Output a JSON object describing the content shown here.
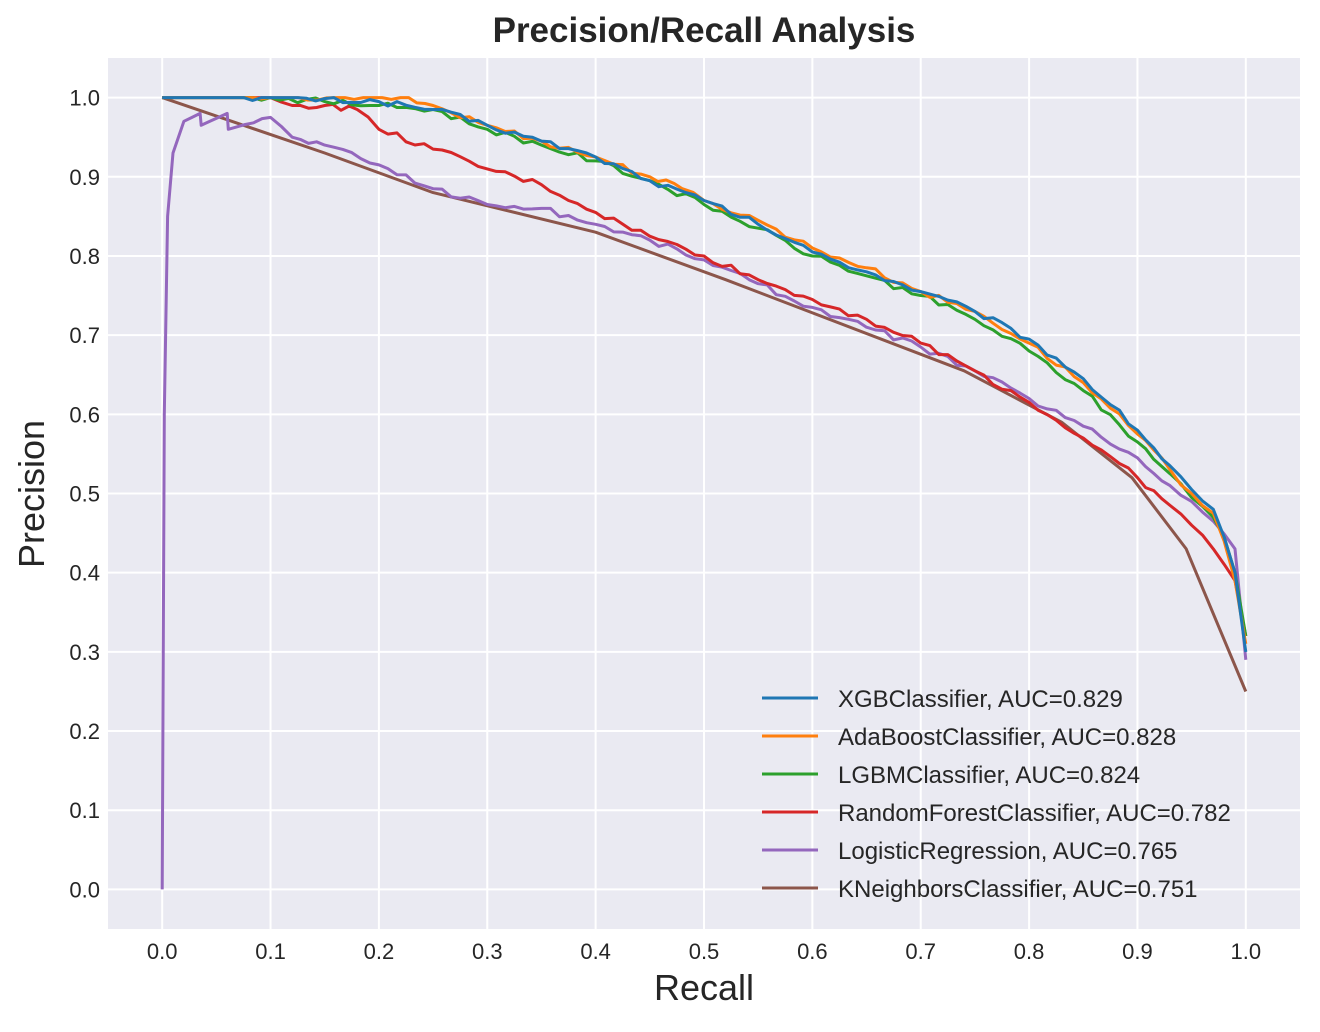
{
  "chart_data": {
    "type": "line",
    "title": "Precision/Recall Analysis",
    "xlabel": "Recall",
    "ylabel": "Precision",
    "xlim": [
      -0.05,
      1.05
    ],
    "ylim": [
      -0.05,
      1.05
    ],
    "xticks": [
      "0.0",
      "0.1",
      "0.2",
      "0.3",
      "0.4",
      "0.5",
      "0.6",
      "0.7",
      "0.8",
      "0.9",
      "1.0"
    ],
    "yticks": [
      "0.0",
      "0.1",
      "0.2",
      "0.3",
      "0.4",
      "0.5",
      "0.6",
      "0.7",
      "0.8",
      "0.9",
      "1.0"
    ],
    "grid": true,
    "legend_position": "lower-right",
    "background_color": "#EAEAF2",
    "series": [
      {
        "name": "XGBClassifier, AUC=0.829",
        "color": "#1f77b4",
        "x": [
          0.0,
          0.1,
          0.2,
          0.25,
          0.3,
          0.35,
          0.4,
          0.45,
          0.5,
          0.55,
          0.6,
          0.65,
          0.7,
          0.75,
          0.8,
          0.85,
          0.9,
          0.93,
          0.95,
          0.97,
          0.98,
          0.99,
          1.0
        ],
        "y": [
          1.0,
          1.0,
          0.995,
          0.985,
          0.965,
          0.945,
          0.925,
          0.895,
          0.87,
          0.84,
          0.805,
          0.78,
          0.755,
          0.73,
          0.695,
          0.645,
          0.58,
          0.535,
          0.505,
          0.48,
          0.445,
          0.4,
          0.3
        ]
      },
      {
        "name": "AdaBoostClassifier, AUC=0.828",
        "color": "#ff7f0e",
        "x": [
          0.0,
          0.1,
          0.22,
          0.25,
          0.3,
          0.35,
          0.4,
          0.45,
          0.48,
          0.5,
          0.55,
          0.6,
          0.65,
          0.7,
          0.75,
          0.8,
          0.85,
          0.9,
          0.93,
          0.95,
          0.97,
          0.98,
          0.99,
          1.0
        ],
        "y": [
          1.0,
          1.0,
          1.0,
          0.99,
          0.965,
          0.945,
          0.925,
          0.9,
          0.885,
          0.87,
          0.845,
          0.81,
          0.785,
          0.755,
          0.73,
          0.69,
          0.64,
          0.575,
          0.53,
          0.5,
          0.475,
          0.44,
          0.39,
          0.31
        ]
      },
      {
        "name": "LGBMClassifier, AUC=0.824",
        "color": "#2ca02c",
        "x": [
          0.0,
          0.1,
          0.15,
          0.2,
          0.25,
          0.3,
          0.35,
          0.4,
          0.45,
          0.5,
          0.55,
          0.6,
          0.65,
          0.7,
          0.75,
          0.8,
          0.85,
          0.9,
          0.93,
          0.95,
          0.97,
          0.98,
          0.99,
          1.0
        ],
        "y": [
          1.0,
          1.0,
          0.995,
          0.99,
          0.985,
          0.96,
          0.94,
          0.92,
          0.895,
          0.865,
          0.835,
          0.8,
          0.775,
          0.75,
          0.72,
          0.68,
          0.63,
          0.565,
          0.525,
          0.495,
          0.47,
          0.445,
          0.4,
          0.32
        ]
      },
      {
        "name": "RandomForestClassifier, AUC=0.782",
        "color": "#d62728",
        "x": [
          0.0,
          0.1,
          0.12,
          0.15,
          0.18,
          0.2,
          0.25,
          0.3,
          0.35,
          0.4,
          0.45,
          0.5,
          0.55,
          0.6,
          0.65,
          0.7,
          0.75,
          0.8,
          0.85,
          0.9,
          0.93,
          0.95,
          0.97,
          0.99,
          1.0
        ],
        "y": [
          1.0,
          1.0,
          0.99,
          0.99,
          0.985,
          0.96,
          0.935,
          0.91,
          0.89,
          0.855,
          0.825,
          0.8,
          0.77,
          0.745,
          0.72,
          0.69,
          0.655,
          0.615,
          0.57,
          0.52,
          0.485,
          0.46,
          0.43,
          0.39,
          0.32
        ]
      },
      {
        "name": "LogisticRegression, AUC=0.765",
        "color": "#9467bd",
        "x": [
          0.0,
          0.002,
          0.005,
          0.01,
          0.02,
          0.035,
          0.036,
          0.06,
          0.061,
          0.1,
          0.12,
          0.15,
          0.2,
          0.25,
          0.3,
          0.35,
          0.4,
          0.45,
          0.5,
          0.55,
          0.6,
          0.65,
          0.7,
          0.75,
          0.8,
          0.85,
          0.9,
          0.93,
          0.95,
          0.97,
          0.99,
          1.0
        ],
        "y": [
          0.0,
          0.6,
          0.85,
          0.93,
          0.97,
          0.98,
          0.965,
          0.98,
          0.96,
          0.975,
          0.95,
          0.94,
          0.915,
          0.885,
          0.865,
          0.86,
          0.84,
          0.82,
          0.795,
          0.765,
          0.735,
          0.71,
          0.685,
          0.655,
          0.62,
          0.585,
          0.545,
          0.51,
          0.49,
          0.465,
          0.43,
          0.29
        ]
      },
      {
        "name": "KNeighborsClassifier, AUC=0.751",
        "color": "#8c564b",
        "x": [
          0.0,
          0.15,
          0.25,
          0.4,
          0.52,
          0.74,
          0.83,
          0.895,
          0.945,
          1.0
        ],
        "y": [
          1.0,
          0.93,
          0.88,
          0.83,
          0.77,
          0.655,
          0.59,
          0.52,
          0.43,
          0.25
        ]
      }
    ]
  }
}
